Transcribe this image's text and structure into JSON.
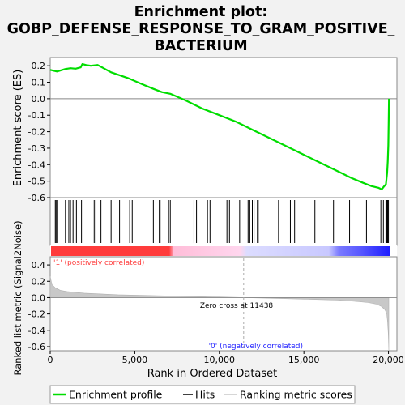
{
  "chart_data": {
    "type": "line",
    "title_lines": [
      "Enrichment plot:",
      "GOBP_DEFENSE_RESPONSE_TO_GRAM_POSITIVE_",
      "BACTERIUM"
    ],
    "top_panel": {
      "ylabel": "Enrichment score (ES)",
      "ylim": [
        -0.6,
        0.25
      ],
      "yticks": [
        "0.2",
        "0.1",
        "0.0",
        "-0.1",
        "-0.2",
        "-0.3",
        "-0.4",
        "-0.5",
        "-0.6"
      ],
      "ytick_values": [
        0.2,
        0.1,
        0.0,
        -0.1,
        -0.2,
        -0.3,
        -0.4,
        -0.5,
        -0.6
      ],
      "series": [
        {
          "name": "Enrichment profile",
          "color": "#00dd00",
          "x": [
            0,
            400,
            900,
            1200,
            1500,
            1800,
            1900,
            2100,
            2400,
            2800,
            3600,
            4600,
            5400,
            6100,
            6600,
            7100,
            8000,
            9000,
            10000,
            11000,
            12000,
            13000,
            14000,
            15000,
            16000,
            17000,
            17800,
            18500,
            19000,
            19400,
            19600,
            19750,
            19850,
            19920,
            19960,
            19990,
            20010,
            20030
          ],
          "y": [
            0.175,
            0.165,
            0.18,
            0.185,
            0.182,
            0.19,
            0.21,
            0.205,
            0.2,
            0.205,
            0.16,
            0.125,
            0.09,
            0.06,
            0.04,
            0.03,
            -0.01,
            -0.06,
            -0.1,
            -0.14,
            -0.19,
            -0.24,
            -0.29,
            -0.34,
            -0.39,
            -0.44,
            -0.48,
            -0.51,
            -0.53,
            -0.54,
            -0.55,
            -0.53,
            -0.52,
            -0.45,
            -0.38,
            -0.28,
            -0.15,
            0.0
          ]
        }
      ],
      "hits": [
        300,
        350,
        420,
        900,
        1100,
        1200,
        1350,
        1550,
        1700,
        1850,
        2600,
        2700,
        3000,
        3600,
        4100,
        4700,
        4850,
        6100,
        6450,
        6500,
        7000,
        7100,
        8500,
        8650,
        9300,
        9450,
        10450,
        10600,
        11200,
        11700,
        11800,
        11950,
        12050,
        12250,
        12300,
        13500,
        14200,
        14450,
        15650,
        16750,
        17700,
        18700,
        19550,
        19700,
        19850,
        19900,
        19950,
        20000
      ]
    },
    "heatbar": {
      "pos_color": "#ff3b3b",
      "neg_color": "#1d1dff",
      "pos_label": "'1' (positively correlated)",
      "neg_label": "'0' (negatively correlated)"
    },
    "bottom_panel": {
      "ylabel": "Ranked list metric (Signal2Noise)",
      "ylim": [
        -0.65,
        0.5
      ],
      "yticks": [
        "0.4",
        "0.2",
        "0.0",
        "-0.2",
        "-0.4",
        "-0.6"
      ],
      "ytick_values": [
        0.4,
        0.2,
        0.0,
        -0.2,
        -0.4,
        -0.6
      ],
      "metric_x": [
        0,
        100,
        300,
        600,
        1000,
        2000,
        3000,
        4000,
        6000,
        8000,
        10000,
        11438,
        13000,
        15000,
        17000,
        18000,
        18800,
        19300,
        19600,
        19800,
        19900,
        19950,
        19990,
        20020
      ],
      "metric_y": [
        0.26,
        0.16,
        0.12,
        0.09,
        0.075,
        0.055,
        0.045,
        0.035,
        0.025,
        0.015,
        0.007,
        0.0,
        -0.008,
        -0.018,
        -0.03,
        -0.045,
        -0.06,
        -0.08,
        -0.11,
        -0.15,
        -0.2,
        -0.3,
        -0.45,
        -0.65
      ],
      "zero_cross_label": "Zero cross at 11438",
      "zero_cross": 11438,
      "fill_color": "#c8c8c8"
    },
    "x_axis": {
      "label": "Rank in Ordered Dataset",
      "range": [
        0,
        20500
      ],
      "ticks": [
        "0",
        "5,000",
        "10,000",
        "15,000",
        "20,000"
      ],
      "tick_values": [
        0,
        5000,
        10000,
        15000,
        20000
      ]
    },
    "legend": {
      "items": [
        "Enrichment profile",
        "Hits",
        "Ranking metric scores"
      ]
    }
  }
}
